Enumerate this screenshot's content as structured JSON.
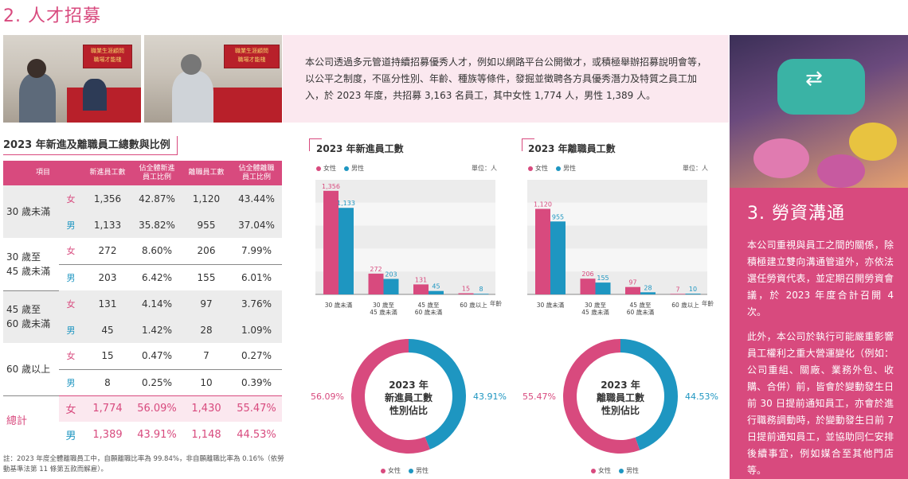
{
  "section": {
    "title": "2. 人才招募"
  },
  "photos": {
    "banner_text": "職業生涯顧問\n職場才能棧"
  },
  "intro": {
    "text": "本公司透過多元管道持續招募優秀人才，例如以網路平台公開徵才，或積極舉辦招募說明會等，以公平之制度，不區分性別、年齡、種族等條件，發掘並徵聘各方具優秀潛力及特質之員工加入，於 2023 年度，共招募 3,163 名員工，其中女性 1,774 人，男性 1,389 人。"
  },
  "table": {
    "title": "2023 年新進及離職員工總數與比例",
    "headers": [
      "項目",
      "新進員工數",
      "佔全體新進員工比例",
      "離職員工數",
      "佔全體離職員工比例"
    ],
    "groups": [
      {
        "label": "30 歲未滿",
        "rows": [
          {
            "gender": "女",
            "hires": "1,356",
            "hire_pct": "42.87%",
            "leaves": "1,120",
            "leave_pct": "43.44%"
          },
          {
            "gender": "男",
            "hires": "1,133",
            "hire_pct": "35.82%",
            "leaves": "955",
            "leave_pct": "37.04%"
          }
        ]
      },
      {
        "label": "30 歲至 45 歲未滿",
        "rows": [
          {
            "gender": "女",
            "hires": "272",
            "hire_pct": "8.60%",
            "leaves": "206",
            "leave_pct": "7.99%"
          },
          {
            "gender": "男",
            "hires": "203",
            "hire_pct": "6.42%",
            "leaves": "155",
            "leave_pct": "6.01%"
          }
        ]
      },
      {
        "label": "45 歲至 60 歲未滿",
        "rows": [
          {
            "gender": "女",
            "hires": "131",
            "hire_pct": "4.14%",
            "leaves": "97",
            "leave_pct": "3.76%"
          },
          {
            "gender": "男",
            "hires": "45",
            "hire_pct": "1.42%",
            "leaves": "28",
            "leave_pct": "1.09%"
          }
        ]
      },
      {
        "label": "60 歲以上",
        "rows": [
          {
            "gender": "女",
            "hires": "15",
            "hire_pct": "0.47%",
            "leaves": "7",
            "leave_pct": "0.27%"
          },
          {
            "gender": "男",
            "hires": "8",
            "hire_pct": "0.25%",
            "leaves": "10",
            "leave_pct": "0.39%"
          }
        ]
      },
      {
        "label": "總計",
        "rows": [
          {
            "gender": "女",
            "hires": "1,774",
            "hire_pct": "56.09%",
            "leaves": "1,430",
            "leave_pct": "55.47%"
          },
          {
            "gender": "男",
            "hires": "1,389",
            "hire_pct": "43.91%",
            "leaves": "1,148",
            "leave_pct": "44.53%"
          }
        ]
      }
    ],
    "note": "註：2023 年度全體離職員工中，自願離職比率為 99.84%，非自願離職比率為 0.16%（依勞動基準法第 11 條第五款而解雇）。"
  },
  "legend": {
    "female": "女性",
    "male": "男性",
    "unit": "單位：人",
    "age_axis": "年齡"
  },
  "colors": {
    "female": "#d84a7e",
    "male": "#1e96c1",
    "accent": "#d84a7e"
  },
  "right": {
    "title": "3. 勞資溝通",
    "p1": "本公司重視與員工之間的關係，除積極建立雙向溝通管道外，亦依法選任勞資代表，並定期召開勞資會議，於 2023 年度合計召開 4 次。",
    "p2": "此外，本公司於執行可能嚴重影響員工權利之重大營運變化（例如：公司重組、關廠、業務外包、收購、合併）前，皆會於變動發生日前 30 日提前通知員工，亦會於進行職務調動時，於變動發生日前 7 日提前通知員工，並協助同仁安排後續事宜，例如媒合至其他門店等。"
  },
  "chart_data": [
    {
      "type": "bar",
      "title": "2023 年新進員工數",
      "xlabel": "年齡",
      "ylabel": "單位：人",
      "categories": [
        "30 歲未滿",
        "30 歲至\n45 歲未滿",
        "45 歲至\n60 歲未滿",
        "60 歲以上"
      ],
      "series": [
        {
          "name": "女性",
          "values": [
            1356,
            272,
            131,
            15
          ]
        },
        {
          "name": "男性",
          "values": [
            1133,
            203,
            45,
            8
          ]
        }
      ],
      "labels": [
        [
          "1,356",
          "272",
          "131",
          "15"
        ],
        [
          "1,133",
          "203",
          "45",
          "8"
        ]
      ],
      "ylim": [
        0,
        1500
      ],
      "grid": true,
      "legend": "top-left"
    },
    {
      "type": "bar",
      "title": "2023 年離職員工數",
      "xlabel": "年齡",
      "ylabel": "單位：人",
      "categories": [
        "30 歲未滿",
        "30 歲至\n45 歲未滿",
        "45 歲至\n60 歲未滿",
        "60 歲以上"
      ],
      "series": [
        {
          "name": "女性",
          "values": [
            1120,
            206,
            97,
            7
          ]
        },
        {
          "name": "男性",
          "values": [
            955,
            155,
            28,
            10
          ]
        }
      ],
      "labels": [
        [
          "1,120",
          "206",
          "97",
          "7"
        ],
        [
          "955",
          "155",
          "28",
          "10"
        ]
      ],
      "ylim": [
        0,
        1500
      ],
      "grid": true,
      "legend": "top-left"
    },
    {
      "type": "pie",
      "title": "2023 年\n新進員工數\n性別佔比",
      "labels": [
        "女性",
        "男性"
      ],
      "values": [
        56.09,
        43.91
      ],
      "value_labels": [
        "56.09%",
        "43.91%"
      ]
    },
    {
      "type": "pie",
      "title": "2023 年\n離職員工數\n性別佔比",
      "labels": [
        "女性",
        "男性"
      ],
      "values": [
        55.47,
        44.53
      ],
      "value_labels": [
        "55.47%",
        "44.53%"
      ]
    }
  ]
}
